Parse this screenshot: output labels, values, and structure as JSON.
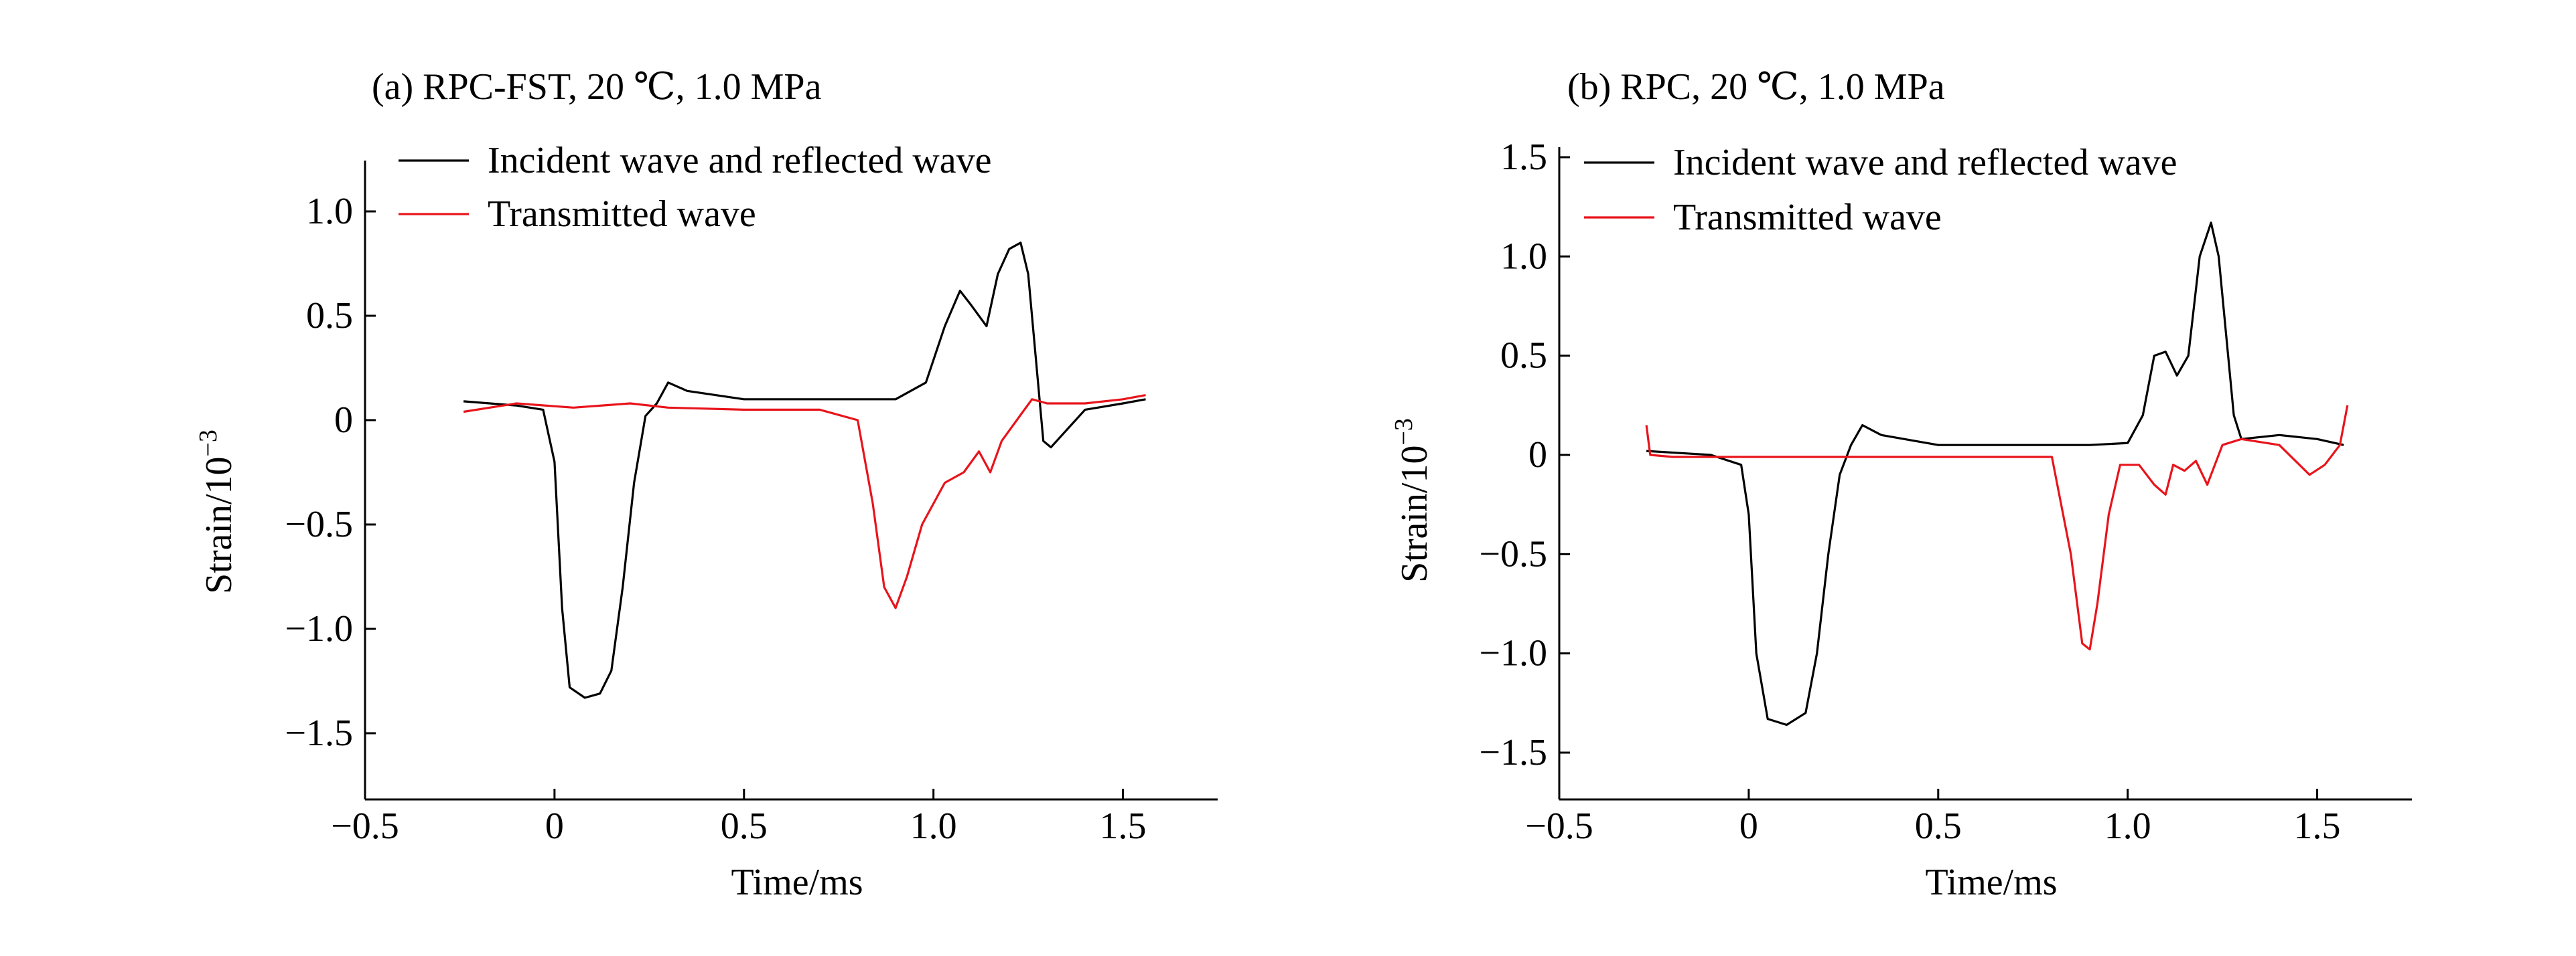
{
  "chart_data": [
    {
      "type": "line",
      "title": "(a) RPC-FST, 20  ℃, 1.0 MPa",
      "xlabel": "Time/ms",
      "ylabel_main": "Strain/10",
      "ylabel_sup": "−3",
      "xlim": [
        -0.5,
        1.75
      ],
      "ylim": [
        -1.75,
        1.25
      ],
      "xticks": [
        -0.5,
        0,
        0.5,
        1.0,
        1.5
      ],
      "xtick_labels": [
        "−0.5",
        "0",
        "0.5",
        "1.0",
        "1.5"
      ],
      "yticks": [
        1.0,
        0.5,
        0,
        -0.5,
        -1.0,
        -1.5
      ],
      "ytick_labels": [
        "1.0",
        "0.5",
        "0",
        "−0.5",
        "−1.0",
        "−1.5"
      ],
      "grid": false,
      "legend_position": "top-left",
      "series": [
        {
          "name": "Incident wave and reflected wave",
          "color": "#000000",
          "x": [
            -0.24,
            -0.1,
            -0.03,
            0.0,
            0.02,
            0.04,
            0.08,
            0.12,
            0.15,
            0.18,
            0.21,
            0.24,
            0.27,
            0.3,
            0.35,
            0.5,
            0.7,
            0.9,
            0.98,
            1.03,
            1.07,
            1.1,
            1.14,
            1.17,
            1.2,
            1.23,
            1.25,
            1.27,
            1.29,
            1.31,
            1.4,
            1.5,
            1.56
          ],
          "y": [
            0.09,
            0.07,
            0.05,
            -0.2,
            -0.9,
            -1.28,
            -1.33,
            -1.31,
            -1.2,
            -0.8,
            -0.3,
            0.02,
            0.08,
            0.18,
            0.14,
            0.1,
            0.1,
            0.1,
            0.18,
            0.45,
            0.62,
            0.55,
            0.45,
            0.7,
            0.82,
            0.85,
            0.7,
            0.3,
            -0.1,
            -0.13,
            0.05,
            0.08,
            0.1
          ]
        },
        {
          "name": "Transmitted wave",
          "color": "#e8141b",
          "x": [
            -0.24,
            -0.1,
            0.05,
            0.2,
            0.3,
            0.5,
            0.7,
            0.8,
            0.84,
            0.87,
            0.9,
            0.93,
            0.97,
            1.03,
            1.08,
            1.12,
            1.15,
            1.18,
            1.22,
            1.26,
            1.3,
            1.4,
            1.5,
            1.56
          ],
          "y": [
            0.04,
            0.08,
            0.06,
            0.08,
            0.06,
            0.05,
            0.05,
            0.0,
            -0.4,
            -0.8,
            -0.9,
            -0.75,
            -0.5,
            -0.3,
            -0.25,
            -0.15,
            -0.25,
            -0.1,
            0.0,
            0.1,
            0.08,
            0.08,
            0.1,
            0.12
          ]
        }
      ]
    },
    {
      "type": "line",
      "title": "(b) RPC, 20  ℃, 1.0 MPa",
      "xlabel": "Time/ms",
      "ylabel_main": "Strain/10",
      "ylabel_sup": "−3",
      "xlim": [
        -0.5,
        1.75
      ],
      "ylim": [
        -1.75,
        1.5
      ],
      "xticks": [
        -0.5,
        0,
        0.5,
        1.0,
        1.5
      ],
      "xtick_labels": [
        "−0.5",
        "0",
        "0.5",
        "1.0",
        "1.5"
      ],
      "yticks": [
        1.5,
        1.0,
        0.5,
        0,
        -0.5,
        -1.0,
        -1.5
      ],
      "ytick_labels": [
        "1.5",
        "1.0",
        "0.5",
        "0",
        "−0.5",
        "−1.0",
        "−1.5"
      ],
      "grid": false,
      "legend_position": "top-left",
      "series": [
        {
          "name": "Incident wave and reflected wave",
          "color": "#000000",
          "x": [
            -0.27,
            -0.1,
            -0.02,
            0.0,
            0.02,
            0.05,
            0.1,
            0.15,
            0.18,
            0.21,
            0.24,
            0.27,
            0.3,
            0.35,
            0.5,
            0.7,
            0.9,
            1.0,
            1.04,
            1.07,
            1.1,
            1.13,
            1.16,
            1.19,
            1.22,
            1.24,
            1.26,
            1.28,
            1.3,
            1.4,
            1.5,
            1.57
          ],
          "y": [
            0.02,
            0.0,
            -0.05,
            -0.3,
            -1.0,
            -1.33,
            -1.36,
            -1.3,
            -1.0,
            -0.5,
            -0.1,
            0.05,
            0.15,
            0.1,
            0.05,
            0.05,
            0.05,
            0.06,
            0.2,
            0.5,
            0.52,
            0.4,
            0.5,
            1.0,
            1.17,
            1.0,
            0.6,
            0.2,
            0.08,
            0.1,
            0.08,
            0.05
          ]
        },
        {
          "name": "Transmitted wave",
          "color": "#e8141b",
          "x": [
            -0.27,
            -0.26,
            -0.2,
            0.2,
            0.5,
            0.8,
            0.85,
            0.88,
            0.9,
            0.92,
            0.95,
            0.98,
            1.03,
            1.07,
            1.1,
            1.12,
            1.15,
            1.18,
            1.21,
            1.23,
            1.25,
            1.3,
            1.4,
            1.48,
            1.52,
            1.56,
            1.58
          ],
          "y": [
            0.15,
            0.0,
            -0.01,
            -0.01,
            -0.01,
            -0.01,
            -0.5,
            -0.95,
            -0.98,
            -0.75,
            -0.3,
            -0.05,
            -0.05,
            -0.15,
            -0.2,
            -0.05,
            -0.08,
            -0.03,
            -0.15,
            -0.05,
            0.05,
            0.08,
            0.05,
            -0.1,
            -0.05,
            0.05,
            0.25
          ]
        }
      ]
    }
  ]
}
